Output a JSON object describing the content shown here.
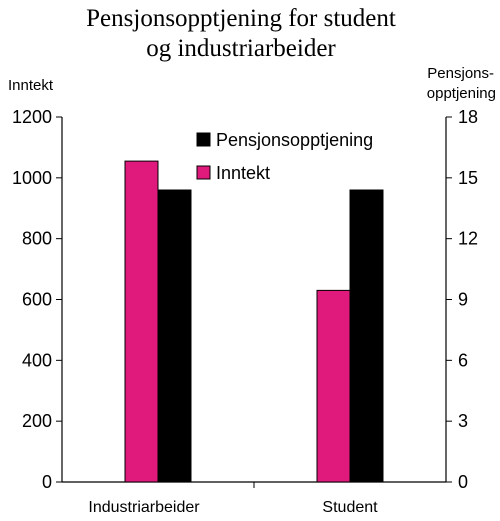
{
  "chart_data": {
    "type": "bar",
    "title": "Pensjonsopptjening for student og industriarbeider",
    "title_lines": [
      "Pensjonsopptjening for student",
      "og industriarbeider"
    ],
    "ylabel_left": "Inntekt",
    "ylabel_right_lines": [
      "Pensjons-",
      "opptjening"
    ],
    "categories": [
      "Industriarbeider",
      "Student"
    ],
    "ylim_left": [
      0,
      1200
    ],
    "yticks_left": [
      "0",
      "200",
      "400",
      "600",
      "800",
      "1000",
      "1200"
    ],
    "ylim_right": [
      0,
      18
    ],
    "yticks_right": [
      "0",
      "3",
      "6",
      "9",
      "12",
      "15",
      "18"
    ],
    "grid": false,
    "legend_placement": "top-right inside plot",
    "series": [
      {
        "name": "Inntekt",
        "axis": "left",
        "color": "#e0197d",
        "values": [
          1055,
          630
        ]
      },
      {
        "name": "Pensjonsopptjening",
        "axis": "right",
        "color": "#000000",
        "values": [
          14.4,
          14.4
        ]
      }
    ]
  }
}
